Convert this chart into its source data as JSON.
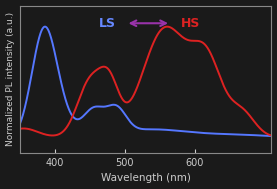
{
  "xlabel": "Wavelength (nm)",
  "ylabel": "Normalized PL intensity (a.u.)",
  "xlim": [
    350,
    710
  ],
  "background_color": "#1a1a1a",
  "plot_bg_color": "#1a1a1a",
  "ls_color": "#5577ff",
  "hs_color": "#dd2222",
  "ls_label_color": "#6688ff",
  "hs_label_color": "#dd2222",
  "arrow_color": "#9933aa",
  "xticks": [
    400,
    500,
    600
  ],
  "tick_color": "#cccccc",
  "label_color": "#cccccc",
  "spine_color": "#888888"
}
